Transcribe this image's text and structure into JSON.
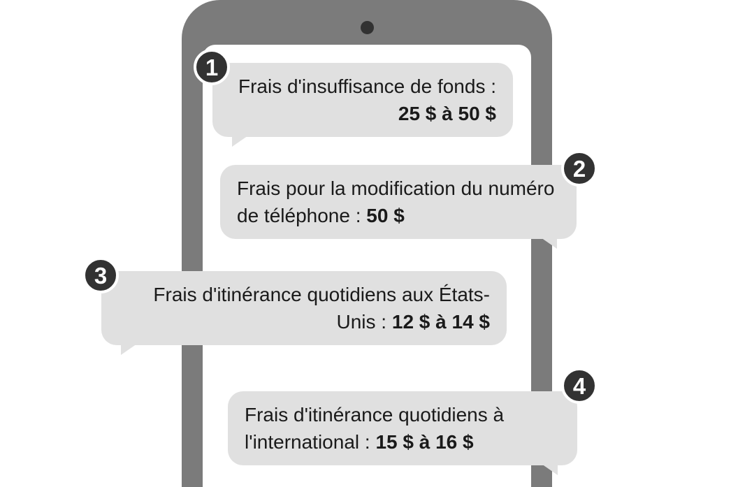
{
  "phone": {
    "body_color": "#7b7b7b",
    "screen_color": "#ffffff",
    "camera_color": "#323232"
  },
  "bubbles": {
    "bg_color": "#e0e0e0",
    "text_color": "#1a1a1a",
    "font_size": 28,
    "items": [
      {
        "badge": "1",
        "text_prefix": "Frais d'insuffisance de fonds : ",
        "text_bold": "25 $ à 50 $"
      },
      {
        "badge": "2",
        "text_prefix": "Frais pour la modification du numéro de téléphone : ",
        "text_bold": "50 $"
      },
      {
        "badge": "3",
        "text_prefix": "Frais d'itinérance quotidiens aux États-Unis : ",
        "text_bold": "12 $ à 14 $"
      },
      {
        "badge": "4",
        "text_prefix": "Frais d'itinérance quotidiens à l'international : ",
        "text_bold": "15 $ à 16 $"
      }
    ]
  },
  "badge": {
    "bg_color": "#323232",
    "border_color": "#ffffff",
    "text_color": "#ffffff",
    "font_size": 33
  }
}
